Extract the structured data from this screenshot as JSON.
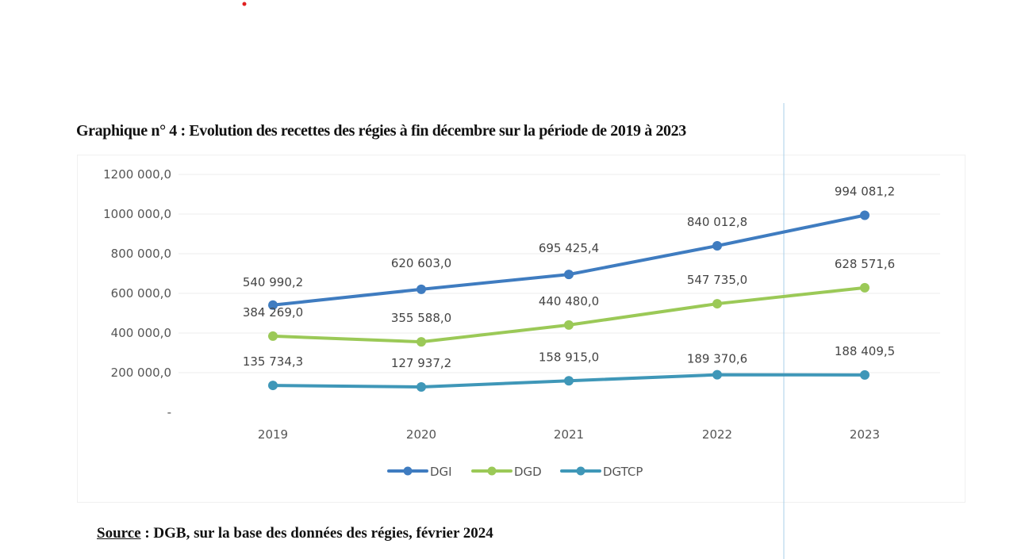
{
  "title": "Graphique n° 4 : Evolution des recettes des régies à fin décembre sur la période de 2019 à 2023",
  "source": {
    "label": "Source",
    "text": " : DGB, sur la base des données des régies, février 2024"
  },
  "chart_data": {
    "type": "line",
    "title": "Graphique n° 4 : Evolution des recettes des régies à fin décembre sur la période de 2019 à 2023",
    "categories": [
      "2019",
      "2020",
      "2021",
      "2022",
      "2023"
    ],
    "ylim": [
      0,
      1200000
    ],
    "yticks": [
      0,
      200000,
      400000,
      600000,
      800000,
      1000000,
      1200000
    ],
    "ytick_labels": [
      "-",
      "200 000,0",
      "400 000,0",
      "600 000,0",
      "800 000,0",
      "1000 000,0",
      "1200 000,0"
    ],
    "grid": true,
    "legend": "bottom",
    "series": [
      {
        "name": "DGI",
        "color": "#3f7cc0",
        "values": [
          540990.2,
          620603.0,
          695425.4,
          840012.8,
          994081.2
        ],
        "labels": [
          "540 990,2",
          "620 603,0",
          "695 425,4",
          "840 012,8",
          "994 081,2"
        ]
      },
      {
        "name": "DGD",
        "color": "#9bc957",
        "values": [
          384269.0,
          355588.0,
          440480.0,
          547735.0,
          628571.6
        ],
        "labels": [
          "384 269,0",
          "355 588,0",
          "440 480,0",
          "547 735,0",
          "628 571,6"
        ]
      },
      {
        "name": "DGTCP",
        "color": "#3f97b8",
        "values": [
          135734.3,
          127937.2,
          158915.0,
          189370.6,
          188409.5
        ],
        "labels": [
          "135 734,3",
          "127 937,2",
          "158 915,0",
          "189 370,6",
          "188 409,5"
        ]
      }
    ]
  }
}
